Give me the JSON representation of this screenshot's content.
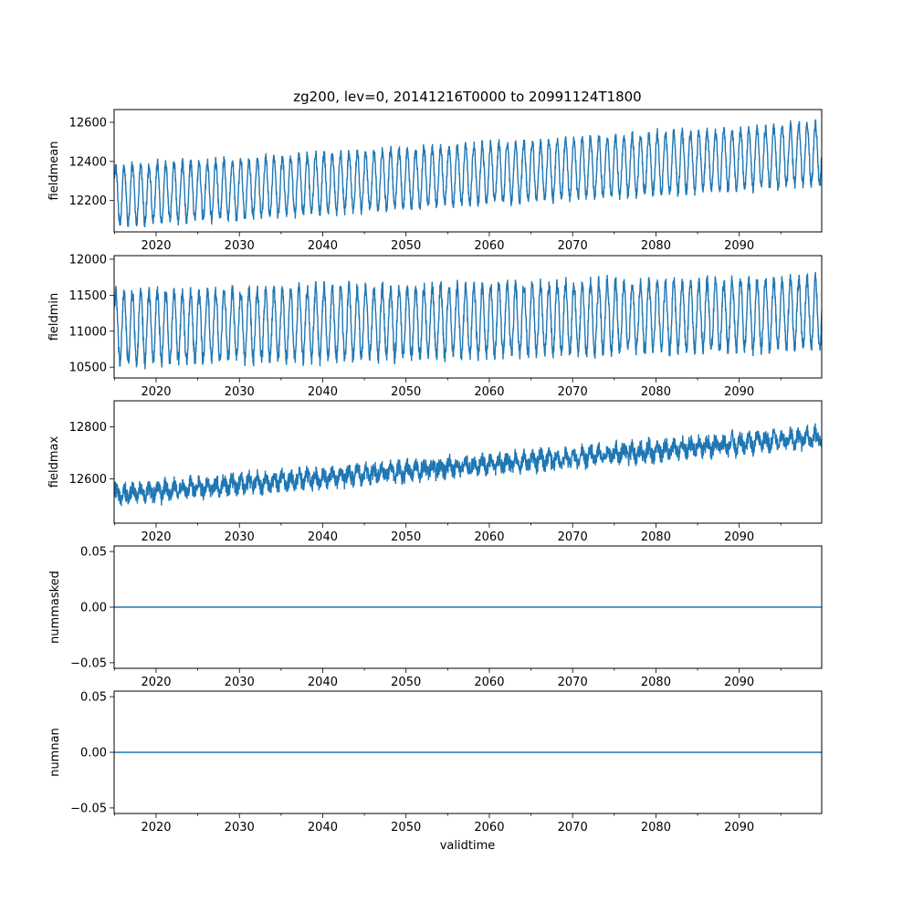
{
  "figure": {
    "title": "zg200, lev=0, 20141216T0000 to 20991124T1800",
    "xlabel": "validtime"
  },
  "colors": {
    "series": "#1f77b4",
    "axes": "#000000",
    "background": "#ffffff"
  },
  "chart_data": [
    {
      "type": "line",
      "ylabel": "fieldmean",
      "xlim": [
        2014.96,
        2099.9
      ],
      "ylim": [
        12040,
        12665
      ],
      "x_ticks": [
        2020,
        2030,
        2040,
        2050,
        2060,
        2070,
        2080,
        2090
      ],
      "y_ticks": [
        12200,
        12400,
        12600
      ],
      "trend": {
        "x": [
          2015,
          2099.9
        ],
        "y": [
          12225,
          12440
        ]
      },
      "seasonal_amplitude": [
        145,
        150
      ],
      "noise": 25,
      "grid": false,
      "legend": "none"
    },
    {
      "type": "line",
      "ylabel": "fieldmin",
      "xlim": [
        2014.96,
        2099.9
      ],
      "ylim": [
        10350,
        12050
      ],
      "x_ticks": [
        2020,
        2030,
        2040,
        2050,
        2060,
        2070,
        2080,
        2090
      ],
      "y_ticks": [
        10500,
        11000,
        11500,
        12000
      ],
      "trend": {
        "x": [
          2015,
          2099.9
        ],
        "y": [
          11050,
          11250
        ]
      },
      "seasonal_amplitude": [
        480,
        470
      ],
      "noise": 90,
      "grid": false,
      "legend": "none"
    },
    {
      "type": "line",
      "ylabel": "fieldmax",
      "xlim": [
        2014.96,
        2099.9
      ],
      "ylim": [
        12430,
        12900
      ],
      "x_ticks": [
        2020,
        2030,
        2040,
        2050,
        2060,
        2070,
        2080,
        2090
      ],
      "y_ticks": [
        12600,
        12800
      ],
      "trend": {
        "x": [
          2015,
          2099.9
        ],
        "y": [
          12540,
          12760
        ]
      },
      "seasonal_amplitude": [
        20,
        20
      ],
      "noise": 28,
      "grid": false,
      "legend": "none"
    },
    {
      "type": "line",
      "ylabel": "nummasked",
      "xlim": [
        2014.96,
        2099.9
      ],
      "ylim": [
        -0.055,
        0.055
      ],
      "x_ticks": [
        2020,
        2030,
        2040,
        2050,
        2060,
        2070,
        2080,
        2090
      ],
      "y_ticks": [
        -0.05,
        0.0,
        0.05
      ],
      "x": [
        2014.96,
        2099.9
      ],
      "y": [
        0,
        0
      ],
      "grid": false,
      "legend": "none"
    },
    {
      "type": "line",
      "ylabel": "numnan",
      "xlim": [
        2014.96,
        2099.9
      ],
      "ylim": [
        -0.055,
        0.055
      ],
      "x_ticks": [
        2020,
        2030,
        2040,
        2050,
        2060,
        2070,
        2080,
        2090
      ],
      "y_ticks": [
        -0.05,
        0.0,
        0.05
      ],
      "x": [
        2014.96,
        2099.9
      ],
      "y": [
        0,
        0
      ],
      "grid": false,
      "legend": "none"
    }
  ]
}
